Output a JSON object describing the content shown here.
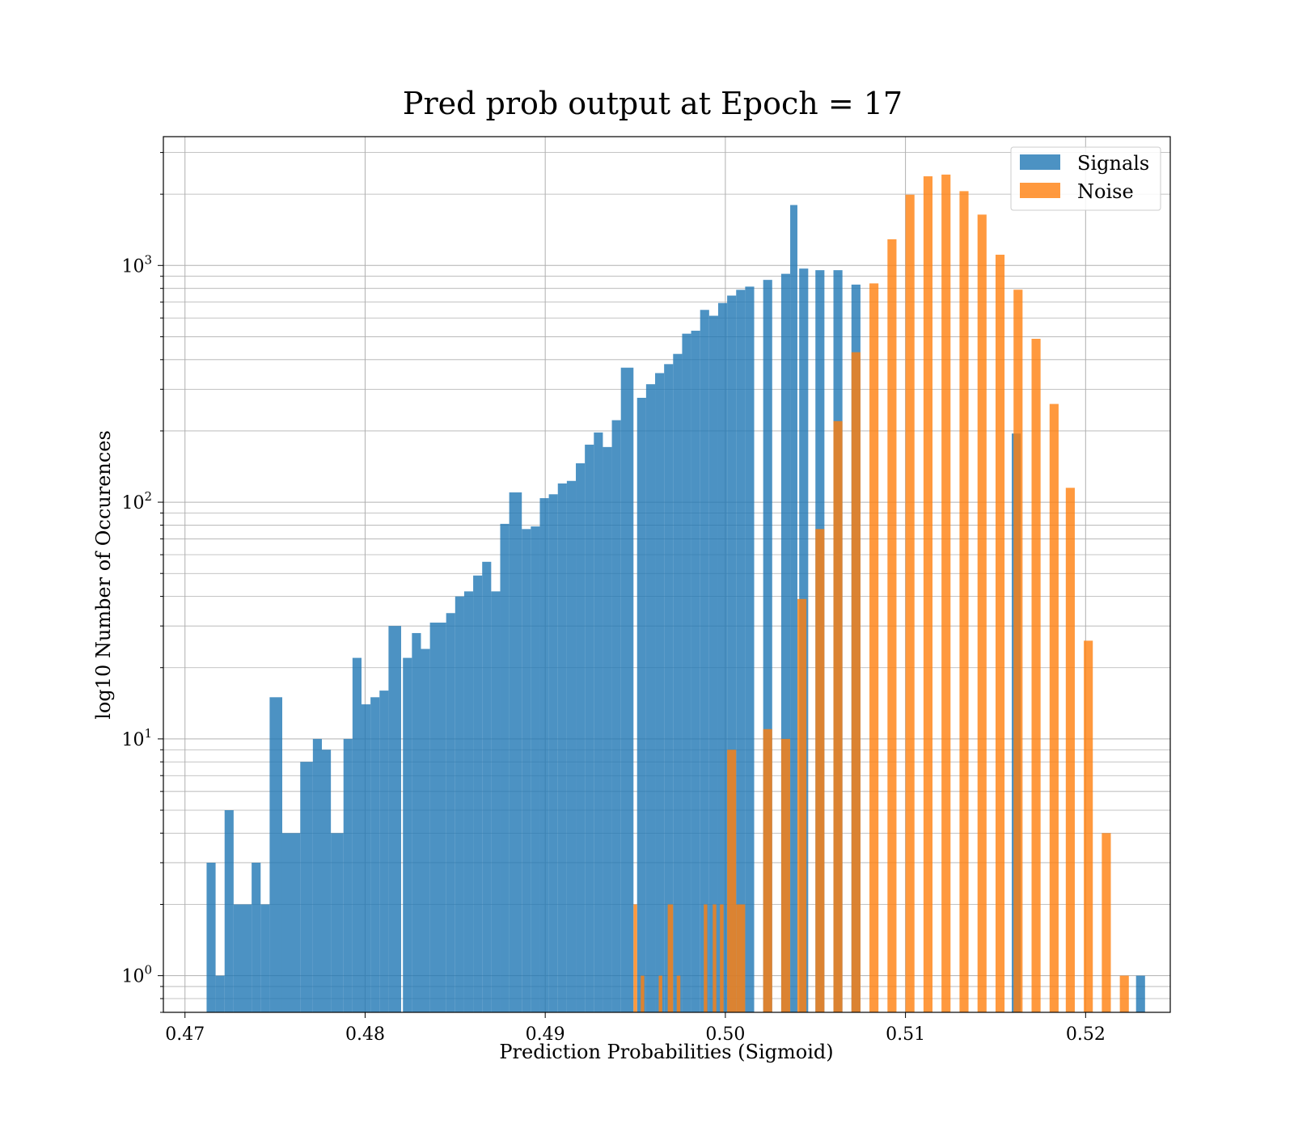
{
  "chart_data": {
    "type": "histogram",
    "title": "Pred prob output at Epoch = 17",
    "xlabel": "Prediction Probabilities (Sigmoid)",
    "ylabel": "log10 Number of Occurences",
    "yscale": "log",
    "xlim": [
      0.4688,
      0.5247
    ],
    "ylim": [
      0.7,
      3500
    ],
    "grid": true,
    "legend_position": "upper right",
    "x_ticks": [
      {
        "value": 0.47,
        "label": "0.47"
      },
      {
        "value": 0.48,
        "label": "0.48"
      },
      {
        "value": 0.49,
        "label": "0.49"
      },
      {
        "value": 0.5,
        "label": "0.50"
      },
      {
        "value": 0.51,
        "label": "0.51"
      },
      {
        "value": 0.52,
        "label": "0.52"
      }
    ],
    "y_ticks": [
      {
        "value": 1,
        "base": "10",
        "exp": "0"
      },
      {
        "value": 10,
        "base": "10",
        "exp": "1"
      },
      {
        "value": 100,
        "base": "10",
        "exp": "2"
      },
      {
        "value": 1000,
        "base": "10",
        "exp": "3"
      }
    ],
    "series": [
      {
        "name": "Signals",
        "color": "#1f77b4",
        "bins": [
          [
            0.4712,
            0.4717,
            3
          ],
          [
            0.4717,
            0.4722,
            1
          ],
          [
            0.4722,
            0.4727,
            5
          ],
          [
            0.4727,
            0.4737,
            2
          ],
          [
            0.4737,
            0.4742,
            3
          ],
          [
            0.4742,
            0.4747,
            2
          ],
          [
            0.4747,
            0.4754,
            15
          ],
          [
            0.4754,
            0.4764,
            4
          ],
          [
            0.4764,
            0.4771,
            8
          ],
          [
            0.4771,
            0.4776,
            10
          ],
          [
            0.4776,
            0.4781,
            9
          ],
          [
            0.4781,
            0.4788,
            4
          ],
          [
            0.4788,
            0.4793,
            10
          ],
          [
            0.4793,
            0.4798,
            22
          ],
          [
            0.4798,
            0.4803,
            14
          ],
          [
            0.4803,
            0.4808,
            15
          ],
          [
            0.4808,
            0.4813,
            16
          ],
          [
            0.4813,
            0.482,
            30
          ],
          [
            0.4821,
            0.4826,
            22
          ],
          [
            0.4826,
            0.4831,
            28
          ],
          [
            0.4831,
            0.4836,
            24
          ],
          [
            0.4836,
            0.4845,
            31
          ],
          [
            0.4845,
            0.485,
            34
          ],
          [
            0.485,
            0.4855,
            40
          ],
          [
            0.4855,
            0.486,
            42
          ],
          [
            0.486,
            0.4865,
            49
          ],
          [
            0.4865,
            0.487,
            56
          ],
          [
            0.487,
            0.4875,
            42
          ],
          [
            0.4875,
            0.488,
            81
          ],
          [
            0.488,
            0.4887,
            110
          ],
          [
            0.4887,
            0.4892,
            77
          ],
          [
            0.4892,
            0.4897,
            79
          ],
          [
            0.4897,
            0.4902,
            104
          ],
          [
            0.4902,
            0.4907,
            108
          ],
          [
            0.4907,
            0.4912,
            120
          ],
          [
            0.4912,
            0.4917,
            123
          ],
          [
            0.4917,
            0.4922,
            146
          ],
          [
            0.4922,
            0.4927,
            175
          ],
          [
            0.4927,
            0.4932,
            197
          ],
          [
            0.4932,
            0.4937,
            171
          ],
          [
            0.4937,
            0.4942,
            222
          ],
          [
            0.4942,
            0.4949,
            370
          ],
          [
            0.4951,
            0.4956,
            276
          ],
          [
            0.4956,
            0.4961,
            315
          ],
          [
            0.4961,
            0.4966,
            351
          ],
          [
            0.4966,
            0.4971,
            383
          ],
          [
            0.4971,
            0.4976,
            423
          ],
          [
            0.4976,
            0.4981,
            515
          ],
          [
            0.4981,
            0.4986,
            530
          ],
          [
            0.4986,
            0.4991,
            649
          ],
          [
            0.4991,
            0.4996,
            613
          ],
          [
            0.4996,
            0.5001,
            694
          ],
          [
            0.5001,
            0.5006,
            746
          ],
          [
            0.5006,
            0.5011,
            789
          ],
          [
            0.5011,
            0.5016,
            814
          ],
          [
            0.5021,
            0.5026,
            869
          ],
          [
            0.5031,
            0.5036,
            922
          ],
          [
            0.5036,
            0.504,
            1800
          ],
          [
            0.5041,
            0.5046,
            970
          ],
          [
            0.505,
            0.5055,
            955
          ],
          [
            0.506,
            0.5065,
            955
          ],
          [
            0.507,
            0.5075,
            830
          ],
          [
            0.5159,
            0.5164,
            195
          ],
          [
            0.5228,
            0.5233,
            1
          ]
        ]
      },
      {
        "name": "Noise",
        "color": "#ff7f0e",
        "bins": [
          [
            0.4949,
            0.4951,
            2
          ],
          [
            0.4953,
            0.4955,
            1
          ],
          [
            0.4963,
            0.4965,
            1
          ],
          [
            0.4968,
            0.4971,
            2
          ],
          [
            0.4973,
            0.4975,
            1
          ],
          [
            0.4988,
            0.499,
            2
          ],
          [
            0.4993,
            0.4995,
            2
          ],
          [
            0.4997,
            0.4999,
            2
          ],
          [
            0.5001,
            0.5006,
            9
          ],
          [
            0.5006,
            0.5011,
            2
          ],
          [
            0.5021,
            0.5026,
            11
          ],
          [
            0.5031,
            0.5036,
            10
          ],
          [
            0.504,
            0.5045,
            39
          ],
          [
            0.505,
            0.5055,
            77
          ],
          [
            0.506,
            0.5065,
            220
          ],
          [
            0.507,
            0.5075,
            430
          ],
          [
            0.508,
            0.5085,
            840
          ],
          [
            0.509,
            0.5095,
            1290
          ],
          [
            0.51,
            0.5105,
            1990
          ],
          [
            0.511,
            0.5115,
            2380
          ],
          [
            0.512,
            0.5125,
            2420
          ],
          [
            0.513,
            0.5135,
            2060
          ],
          [
            0.514,
            0.5145,
            1640
          ],
          [
            0.515,
            0.5155,
            1110
          ],
          [
            0.516,
            0.5165,
            790
          ],
          [
            0.517,
            0.5175,
            490
          ],
          [
            0.518,
            0.5185,
            260
          ],
          [
            0.5189,
            0.5194,
            115
          ],
          [
            0.5199,
            0.5204,
            26
          ],
          [
            0.5209,
            0.5214,
            4
          ],
          [
            0.5219,
            0.5224,
            1
          ]
        ]
      }
    ]
  }
}
